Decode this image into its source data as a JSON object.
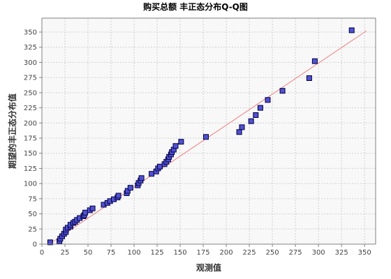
{
  "chart_data": {
    "type": "scatter",
    "title": "购买总额 丰正态分布Q-Q图",
    "xlabel": "观测值",
    "ylabel": "期望的丰正态分布值",
    "xlim": [
      0,
      362
    ],
    "ylim": [
      0,
      373
    ],
    "x_ticks": [
      0,
      25,
      50,
      75,
      100,
      125,
      150,
      175,
      200,
      225,
      250,
      275,
      300,
      325,
      350
    ],
    "y_ticks": [
      0,
      25,
      50,
      75,
      100,
      125,
      150,
      175,
      200,
      225,
      250,
      275,
      300,
      325,
      350
    ],
    "grid": true,
    "colors": {
      "point_fill": "#5050d0",
      "point_stroke": "#000044",
      "reference_line": "#f08080",
      "plot_background": "#f8f8f8"
    },
    "reference_line": {
      "x": [
        8,
        352
      ],
      "y": [
        0,
        352
      ]
    },
    "points": [
      [
        9,
        3
      ],
      [
        19,
        5
      ],
      [
        20,
        9
      ],
      [
        22,
        13
      ],
      [
        24,
        17
      ],
      [
        26,
        20
      ],
      [
        26,
        24
      ],
      [
        28,
        27
      ],
      [
        31,
        29
      ],
      [
        31,
        32
      ],
      [
        34,
        35
      ],
      [
        36,
        37
      ],
      [
        38,
        40
      ],
      [
        41,
        43
      ],
      [
        45,
        46
      ],
      [
        46,
        48
      ],
      [
        47,
        52
      ],
      [
        52,
        56
      ],
      [
        55,
        59
      ],
      [
        67,
        65
      ],
      [
        71,
        68
      ],
      [
        74,
        71
      ],
      [
        78,
        74
      ],
      [
        82,
        77
      ],
      [
        83,
        80
      ],
      [
        92,
        84
      ],
      [
        93,
        88
      ],
      [
        96,
        93
      ],
      [
        104,
        97
      ],
      [
        105,
        101
      ],
      [
        107,
        105
      ],
      [
        108,
        109
      ],
      [
        119,
        116
      ],
      [
        124,
        120
      ],
      [
        126,
        125
      ],
      [
        128,
        128
      ],
      [
        133,
        132
      ],
      [
        135,
        136
      ],
      [
        137,
        140
      ],
      [
        138,
        144
      ],
      [
        140,
        148
      ],
      [
        141,
        152
      ],
      [
        143,
        156
      ],
      [
        145,
        162
      ],
      [
        151,
        169
      ],
      [
        178,
        177
      ],
      [
        214,
        185
      ],
      [
        217,
        193
      ],
      [
        227,
        203
      ],
      [
        232,
        213
      ],
      [
        237,
        225
      ],
      [
        245,
        238
      ],
      [
        261,
        253
      ],
      [
        290,
        274
      ],
      [
        296,
        302
      ],
      [
        336,
        353
      ]
    ]
  }
}
